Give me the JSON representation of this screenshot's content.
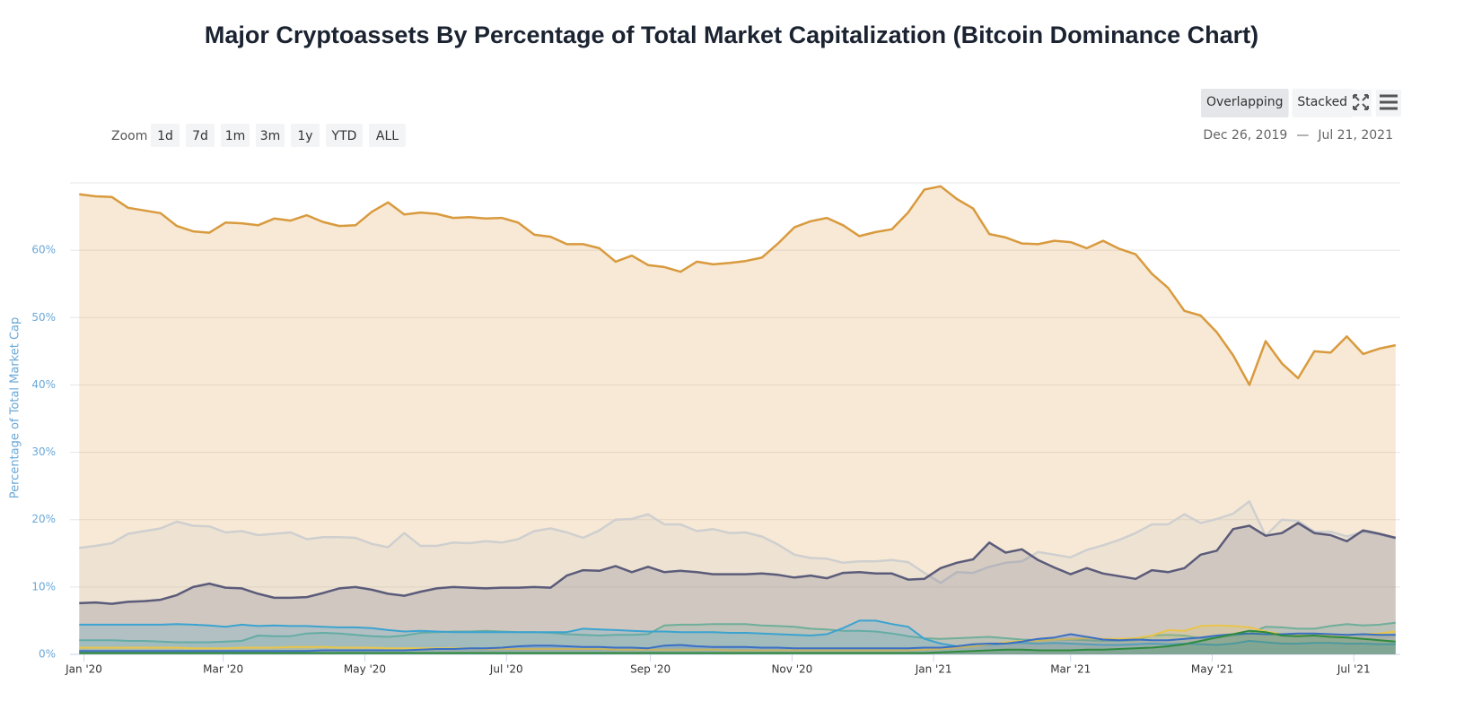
{
  "chart_data": {
    "type": "area",
    "title": "Major Cryptoassets By Percentage of Total Market Capitalization (Bitcoin Dominance Chart)",
    "y_label": "Percentage of Total Market Cap",
    "controls": {
      "zoom_label": "Zoom",
      "zoom": [
        "1d",
        "7d",
        "1m",
        "3m",
        "1y",
        "YTD",
        "ALL"
      ],
      "modes": [
        "Overlapping",
        "Stacked"
      ],
      "active_mode": 0
    },
    "range": {
      "from": "Dec 26, 2019",
      "separator": "—",
      "to": "Jul 21, 2021"
    },
    "xlim": [
      "2019-12-26",
      "2021-07-21"
    ],
    "xticks": [
      {
        "value": "2020-01-01",
        "label": "Jan '20"
      },
      {
        "value": "2020-03-01",
        "label": "Mar '20"
      },
      {
        "value": "2020-05-01",
        "label": "May '20"
      },
      {
        "value": "2020-07-01",
        "label": "Jul '20"
      },
      {
        "value": "2020-09-01",
        "label": "Sep '20"
      },
      {
        "value": "2020-11-01",
        "label": "Nov '20"
      },
      {
        "value": "2021-01-01",
        "label": "Jan '21"
      },
      {
        "value": "2021-03-01",
        "label": "Mar '21"
      },
      {
        "value": "2021-05-01",
        "label": "May '21"
      },
      {
        "value": "2021-07-01",
        "label": "Jul '21"
      }
    ],
    "ylim": [
      0,
      70
    ],
    "yticks": [
      {
        "value": 0,
        "label": "0%"
      },
      {
        "value": 10,
        "label": "10%"
      },
      {
        "value": 20,
        "label": "20%"
      },
      {
        "value": 30,
        "label": "30%"
      },
      {
        "value": 40,
        "label": "40%"
      },
      {
        "value": 50,
        "label": "50%"
      },
      {
        "value": 60,
        "label": "60%"
      }
    ],
    "grid": true,
    "x": [
      "2019-12-30",
      "2020-01-06",
      "2020-01-13",
      "2020-01-20",
      "2020-01-27",
      "2020-02-03",
      "2020-02-10",
      "2020-02-17",
      "2020-02-24",
      "2020-03-02",
      "2020-03-09",
      "2020-03-16",
      "2020-03-23",
      "2020-03-30",
      "2020-04-06",
      "2020-04-13",
      "2020-04-20",
      "2020-04-27",
      "2020-05-04",
      "2020-05-11",
      "2020-05-18",
      "2020-05-25",
      "2020-06-01",
      "2020-06-08",
      "2020-06-15",
      "2020-06-22",
      "2020-06-29",
      "2020-07-06",
      "2020-07-13",
      "2020-07-20",
      "2020-07-27",
      "2020-08-03",
      "2020-08-10",
      "2020-08-17",
      "2020-08-24",
      "2020-08-31",
      "2020-09-07",
      "2020-09-14",
      "2020-09-21",
      "2020-09-28",
      "2020-10-05",
      "2020-10-12",
      "2020-10-19",
      "2020-10-26",
      "2020-11-02",
      "2020-11-09",
      "2020-11-16",
      "2020-11-23",
      "2020-11-30",
      "2020-12-07",
      "2020-12-14",
      "2020-12-21",
      "2020-12-28",
      "2021-01-04",
      "2021-01-11",
      "2021-01-18",
      "2021-01-25",
      "2021-02-01",
      "2021-02-08",
      "2021-02-15",
      "2021-02-22",
      "2021-03-01",
      "2021-03-08",
      "2021-03-15",
      "2021-03-22",
      "2021-03-29",
      "2021-04-05",
      "2021-04-12",
      "2021-04-19",
      "2021-04-26",
      "2021-05-03",
      "2021-05-10",
      "2021-05-17",
      "2021-05-24",
      "2021-05-31",
      "2021-06-07",
      "2021-06-14",
      "2021-06-21",
      "2021-06-28",
      "2021-07-05",
      "2021-07-12",
      "2021-07-19"
    ],
    "series": [
      {
        "color": "#d99a3e",
        "values": [
          68.3,
          68,
          67.9,
          66.3,
          65.9,
          65.5,
          63.6,
          62.8,
          62.6,
          64.1,
          64,
          63.7,
          64.7,
          64.4,
          65.2,
          64.2,
          63.6,
          63.7,
          65.7,
          67.1,
          65.3,
          65.6,
          65.4,
          64.8,
          64.9,
          64.7,
          64.8,
          64.1,
          62.3,
          62.0,
          60.9,
          60.9,
          60.3,
          58.3,
          59.2,
          57.8,
          57.5,
          56.8,
          58.3,
          57.9,
          58.1,
          58.4,
          58.9,
          61,
          63.4,
          64.3,
          64.8,
          63.7,
          62.1,
          62.7,
          63.1,
          65.6,
          69,
          69.5,
          67.6,
          66.2,
          62.4,
          61.9,
          61,
          60.9,
          61.4,
          61.2,
          60.3,
          61.4,
          60.2,
          59.4,
          56.5,
          54.4,
          51,
          50.3,
          47.8,
          44.4,
          40,
          46.5,
          43.2,
          41,
          45,
          44.8,
          47.2,
          44.6,
          45.4,
          45.9
        ]
      },
      {
        "color": "#cfcfcf",
        "values": [
          15.8,
          16.1,
          16.5,
          17.9,
          18.3,
          18.7,
          19.7,
          19.1,
          19.0,
          18.1,
          18.3,
          17.7,
          17.9,
          18.1,
          17.1,
          17.4,
          17.4,
          17.3,
          16.4,
          15.9,
          18.0,
          16.1,
          16.1,
          16.6,
          16.5,
          16.8,
          16.6,
          17.1,
          18.3,
          18.7,
          18.1,
          17.3,
          18.4,
          20.0,
          20.1,
          20.8,
          19.3,
          19.3,
          18.3,
          18.6,
          18.0,
          18.1,
          17.5,
          16.3,
          14.8,
          14.3,
          14.2,
          13.6,
          13.8,
          13.8,
          14.0,
          13.7,
          12.1,
          10.6,
          12.2,
          12.1,
          13.0,
          13.6,
          13.8,
          15.2,
          14.8,
          14.4,
          15.5,
          16.2,
          17.0,
          18.0,
          19.3,
          19.3,
          20.8,
          19.5,
          20.1,
          20.9,
          22.7,
          17.6,
          20.0,
          19.8,
          18.2,
          18.2,
          17.5,
          18.2,
          17.8,
          17.2
        ]
      },
      {
        "color": "#5b5b7a",
        "values": [
          7.6,
          7.7,
          7.5,
          7.8,
          7.9,
          8.1,
          8.8,
          10.0,
          10.5,
          9.9,
          9.8,
          9.0,
          8.4,
          8.4,
          8.5,
          9.1,
          9.8,
          10.0,
          9.6,
          9.0,
          8.7,
          9.3,
          9.8,
          10.0,
          9.9,
          9.8,
          9.9,
          9.9,
          10.0,
          9.9,
          11.7,
          12.5,
          12.4,
          13.1,
          12.2,
          13.0,
          12.2,
          12.4,
          12.2,
          11.9,
          11.9,
          11.9,
          12.0,
          11.8,
          11.4,
          11.7,
          11.3,
          12.1,
          12.2,
          12.0,
          12.0,
          11.1,
          11.2,
          12.8,
          13.6,
          14.1,
          16.6,
          15.1,
          15.6,
          14.0,
          12.9,
          11.9,
          12.8,
          12.0,
          11.6,
          11.2,
          12.5,
          12.2,
          12.8,
          14.8,
          15.4,
          18.6,
          19.1,
          17.6,
          18.0,
          19.5,
          18.0,
          17.7,
          16.8,
          18.4,
          17.9,
          17.3
        ]
      },
      {
        "color": "#6fae9a",
        "values": [
          2.1,
          2.1,
          2.1,
          2.0,
          2.0,
          1.9,
          1.8,
          1.8,
          1.8,
          1.9,
          2.0,
          2.8,
          2.7,
          2.7,
          3.1,
          3.2,
          3.1,
          2.9,
          2.7,
          2.6,
          2.8,
          3.2,
          3.3,
          3.4,
          3.4,
          3.5,
          3.4,
          3.3,
          3.3,
          3.2,
          3.0,
          2.9,
          2.8,
          2.9,
          2.9,
          3.0,
          4.3,
          4.4,
          4.4,
          4.5,
          4.5,
          4.5,
          4.3,
          4.2,
          4.1,
          3.8,
          3.7,
          3.5,
          3.5,
          3.4,
          3.1,
          2.7,
          2.4,
          2.3,
          2.4,
          2.5,
          2.6,
          2.4,
          2.2,
          2.1,
          2.2,
          2.2,
          2.1,
          2.0,
          2.0,
          2.1,
          2.8,
          2.9,
          2.8,
          2.4,
          2.5,
          2.8,
          3.1,
          4.1,
          4.0,
          3.8,
          3.8,
          4.2,
          4.5,
          4.3,
          4.4,
          4.7
        ]
      },
      {
        "color": "#3ba3d0",
        "values": [
          4.4,
          4.4,
          4.4,
          4.4,
          4.4,
          4.4,
          4.5,
          4.4,
          4.3,
          4.1,
          4.4,
          4.2,
          4.3,
          4.2,
          4.2,
          4.1,
          4.0,
          4.0,
          3.9,
          3.6,
          3.4,
          3.5,
          3.4,
          3.3,
          3.3,
          3.3,
          3.3,
          3.3,
          3.3,
          3.3,
          3.3,
          3.8,
          3.7,
          3.6,
          3.5,
          3.4,
          3.4,
          3.3,
          3.3,
          3.3,
          3.2,
          3.2,
          3.1,
          3.0,
          2.9,
          2.8,
          3.0,
          3.9,
          5.0,
          5.0,
          4.5,
          4.1,
          2.3,
          1.6,
          1.2,
          1.3,
          1.4,
          1.6,
          1.7,
          1.6,
          1.7,
          1.6,
          1.5,
          1.4,
          1.4,
          1.5,
          1.6,
          1.5,
          1.6,
          1.5,
          1.4,
          1.6,
          2.0,
          1.8,
          1.6,
          1.6,
          1.7,
          1.7,
          1.6,
          1.6,
          1.5,
          1.5
        ]
      },
      {
        "color": "#e8c54b",
        "values": [
          1.0,
          1.0,
          1.0,
          1.0,
          1.0,
          1.0,
          1.0,
          0.9,
          0.9,
          0.9,
          1.0,
          1.0,
          1.0,
          1.1,
          1.1,
          1.1,
          1.0,
          1.0,
          1.0,
          0.9,
          0.9,
          0.9,
          0.9,
          0.9,
          0.9,
          0.8,
          0.8,
          0.8,
          0.8,
          0.8,
          0.8,
          0.8,
          0.8,
          0.7,
          0.7,
          0.7,
          0.7,
          0.7,
          0.7,
          0.7,
          0.6,
          0.6,
          0.6,
          0.6,
          0.6,
          0.6,
          0.6,
          0.6,
          0.6,
          0.6,
          0.6,
          0.6,
          0.7,
          0.8,
          1.0,
          1.2,
          1.5,
          1.8,
          2.0,
          2.0,
          2.2,
          2.3,
          2.4,
          2.3,
          2.3,
          2.4,
          2.8,
          3.6,
          3.5,
          4.2,
          4.3,
          4.2,
          4.0,
          3.4,
          3.0,
          2.8,
          2.9,
          2.8,
          2.9,
          3.0,
          3.1,
          3.4
        ]
      },
      {
        "color": "#3a6fc4",
        "values": [
          0.5,
          0.5,
          0.5,
          0.5,
          0.5,
          0.5,
          0.5,
          0.5,
          0.5,
          0.5,
          0.5,
          0.5,
          0.5,
          0.5,
          0.5,
          0.6,
          0.6,
          0.6,
          0.6,
          0.6,
          0.6,
          0.7,
          0.8,
          0.8,
          0.9,
          0.9,
          1.0,
          1.2,
          1.3,
          1.3,
          1.2,
          1.1,
          1.1,
          1.0,
          1.0,
          0.9,
          1.3,
          1.4,
          1.2,
          1.1,
          1.1,
          1.1,
          1.0,
          1.0,
          0.9,
          0.9,
          0.9,
          0.9,
          0.9,
          0.9,
          0.9,
          0.9,
          1.0,
          1.0,
          1.2,
          1.5,
          1.6,
          1.6,
          1.9,
          2.3,
          2.5,
          3.0,
          2.6,
          2.2,
          2.1,
          2.2,
          2.1,
          2.1,
          2.3,
          2.5,
          2.8,
          3.0,
          3.1,
          3.0,
          3.0,
          3.1,
          3.1,
          3.0,
          2.9,
          3.0,
          2.9,
          2.9
        ]
      },
      {
        "color": "#2e8b3e",
        "values": [
          0.2,
          0.2,
          0.2,
          0.2,
          0.2,
          0.2,
          0.2,
          0.2,
          0.2,
          0.2,
          0.2,
          0.2,
          0.2,
          0.2,
          0.2,
          0.2,
          0.2,
          0.2,
          0.2,
          0.2,
          0.2,
          0.2,
          0.2,
          0.2,
          0.2,
          0.2,
          0.2,
          0.2,
          0.2,
          0.2,
          0.2,
          0.2,
          0.2,
          0.2,
          0.2,
          0.2,
          0.2,
          0.2,
          0.2,
          0.2,
          0.2,
          0.2,
          0.2,
          0.2,
          0.2,
          0.2,
          0.2,
          0.2,
          0.2,
          0.2,
          0.2,
          0.2,
          0.2,
          0.3,
          0.4,
          0.5,
          0.6,
          0.7,
          0.7,
          0.6,
          0.6,
          0.6,
          0.7,
          0.7,
          0.8,
          0.9,
          1.0,
          1.2,
          1.5,
          2.0,
          2.5,
          3.0,
          3.5,
          3.3,
          2.8,
          2.7,
          2.8,
          2.6,
          2.5,
          2.3,
          2.1,
          1.9
        ]
      }
    ]
  }
}
